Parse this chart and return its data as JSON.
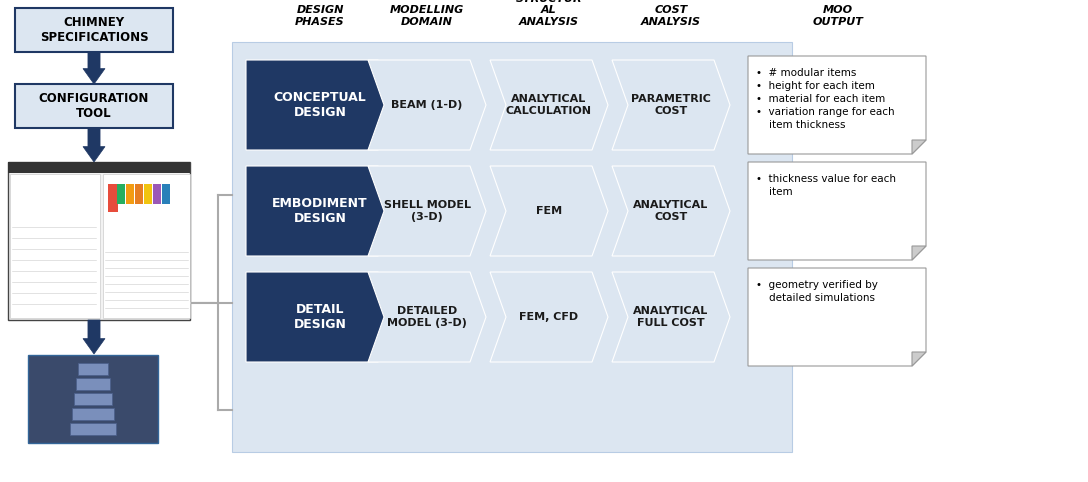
{
  "bg_color": "#ffffff",
  "dark_blue": "#1f3864",
  "light_blue": "#b8cce4",
  "lighter_blue": "#dce6f1",
  "arrow_color": "#1f3864",
  "left_col_header": "DESIGN\nPHASES",
  "col2_header": "MODELLING\nDOMAIN",
  "col3_header": "STRUCTUR\nAL\nANALYSIS",
  "col4_header": "COST\nANALYSIS",
  "col5_header": "MOO\nOUTPUT",
  "rows": [
    {
      "phase": "CONCEPTUAL\nDESIGN",
      "modelling": "BEAM (1-D)",
      "structural": "ANALYTICAL\nCALCULATION",
      "cost": "PARAMETRIC\nCOST",
      "output_lines": [
        "# modular items",
        "height for each item",
        "material for each item",
        "variation range for each\nitem thickness"
      ]
    },
    {
      "phase": "EMBODIMENT\nDESIGN",
      "modelling": "SHELL MODEL\n(3-D)",
      "structural": "FEM",
      "cost": "ANALYTICAL\nCOST",
      "output_lines": [
        "thickness value for each\nitem"
      ]
    },
    {
      "phase": "DETAIL\nDESIGN",
      "modelling": "DETAILED\nMODEL (3-D)",
      "structural": "FEM, CFD",
      "cost": "ANALYTICAL\nFULL COST",
      "output_lines": [
        "geometry verified by\ndetailed simulations"
      ]
    }
  ]
}
